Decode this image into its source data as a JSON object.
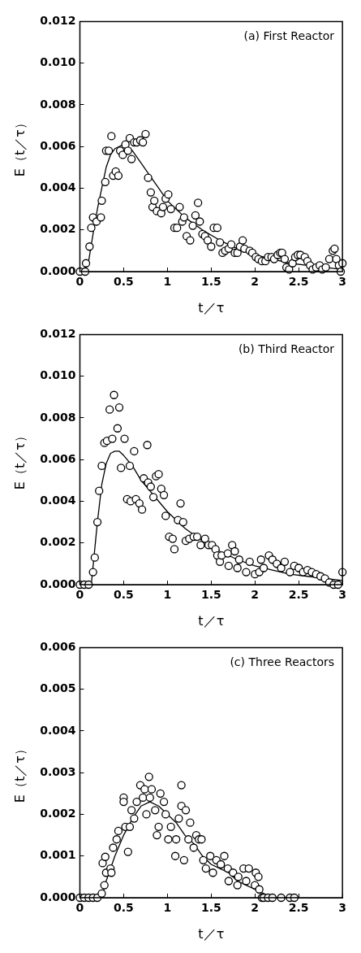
{
  "chart_data": [
    {
      "type": "scatter",
      "title": "(a) First Reactor",
      "xlabel": "t／τ",
      "ylabel": "E（t／τ）",
      "xlim": [
        0,
        3
      ],
      "ylim": [
        0,
        0.012
      ],
      "xticks": [
        0,
        0.5,
        1,
        1.5,
        2,
        2.5,
        3
      ],
      "yticks": [
        {
          "value": 0,
          "label": "0.000"
        },
        {
          "value": 0.002,
          "label": "0.002"
        },
        {
          "value": 0.004,
          "label": "0.004"
        },
        {
          "value": 0.006,
          "label": "0.006"
        },
        {
          "value": 0.008,
          "label": "0.008"
        },
        {
          "value": 0.01,
          "label": "0.010"
        },
        {
          "value": 0.012,
          "label": "0.012"
        }
      ],
      "grid": false,
      "series": [
        {
          "type": "scatter",
          "marker": "circle",
          "color": "#000000",
          "x": [
            0,
            0.06,
            0.07,
            0.11,
            0.13,
            0.15,
            0.19,
            0.24,
            0.25,
            0.29,
            0.3,
            0.33,
            0.36,
            0.38,
            0.41,
            0.44,
            0.46,
            0.49,
            0.52,
            0.55,
            0.57,
            0.59,
            0.62,
            0.65,
            0.69,
            0.72,
            0.75,
            0.78,
            0.81,
            0.83,
            0.85,
            0.88,
            0.93,
            0.95,
            0.98,
            1.01,
            1.04,
            1.08,
            1.11,
            1.14,
            1.17,
            1.19,
            1.22,
            1.26,
            1.29,
            1.32,
            1.35,
            1.37,
            1.4,
            1.43,
            1.46,
            1.5,
            1.53,
            1.57,
            1.6,
            1.63,
            1.66,
            1.7,
            1.73,
            1.77,
            1.8,
            1.83,
            1.86,
            1.88,
            1.94,
            1.97,
            2.01,
            2.04,
            2.08,
            2.12,
            2.15,
            2.19,
            2.22,
            2.26,
            2.29,
            2.31,
            2.34,
            2.36,
            2.39,
            2.43,
            2.46,
            2.49,
            2.52,
            2.57,
            2.6,
            2.63,
            2.66,
            2.7,
            2.74,
            2.77,
            2.81,
            2.85,
            2.89,
            2.91,
            2.93,
            2.96,
            2.98,
            3
          ],
          "values": [
            0,
            0,
            0.0004,
            0.0012,
            0.0021,
            0.0026,
            0.0024,
            0.0026,
            0.0034,
            0.0043,
            0.0058,
            0.0058,
            0.0065,
            0.0046,
            0.0048,
            0.0046,
            0.0058,
            0.0056,
            0.0061,
            0.0058,
            0.0064,
            0.0054,
            0.0062,
            0.0062,
            0.0063,
            0.0062,
            0.0066,
            0.0045,
            0.0038,
            0.0031,
            0.0034,
            0.0029,
            0.0028,
            0.0031,
            0.0035,
            0.0037,
            0.003,
            0.0021,
            0.0021,
            0.0031,
            0.0024,
            0.0026,
            0.0017,
            0.0015,
            0.0022,
            0.0027,
            0.0033,
            0.0024,
            0.0018,
            0.0017,
            0.0015,
            0.0012,
            0.0021,
            0.0021,
            0.0014,
            0.0009,
            0.001,
            0.0011,
            0.0013,
            0.0009,
            0.0009,
            0.0012,
            0.0015,
            0.0011,
            0.001,
            0.0009,
            0.0007,
            0.0006,
            0.0005,
            0.0005,
            0.0007,
            0.0007,
            0.0006,
            0.0008,
            0.0009,
            0.0009,
            0.0006,
            0.0002,
            0.0001,
            0.0004,
            0.0007,
            0.0008,
            0.0008,
            0.0007,
            0.0005,
            0.0003,
            0.0001,
            0.0002,
            0.0003,
            0.0001,
            0.0002,
            0.0006,
            0.001,
            0.0011,
            0.0006,
            0.0003,
            0,
            0.0004
          ]
        },
        {
          "type": "line",
          "color": "#000000",
          "x": [
            0,
            0.05,
            0.1,
            0.15,
            0.2,
            0.25,
            0.3,
            0.35,
            0.4,
            0.5,
            0.6,
            0.7,
            0.8,
            0.9,
            1,
            1.2,
            1.4,
            1.6,
            1.8,
            2,
            2.2,
            2.4,
            2.6,
            2.8,
            3
          ],
          "values": [
            0,
            0,
            0.0005,
            0.0018,
            0.003,
            0.004,
            0.005,
            0.0056,
            0.0059,
            0.0061,
            0.0058,
            0.0052,
            0.0046,
            0.004,
            0.0034,
            0.0026,
            0.002,
            0.0015,
            0.0011,
            0.0008,
            0.0006,
            0.0004,
            0.0003,
            0.0002,
            0.0001
          ]
        }
      ]
    },
    {
      "type": "scatter",
      "title": "(b) Third Reactor",
      "xlabel": "t／τ",
      "ylabel": "E（t／τ）",
      "xlim": [
        0,
        3
      ],
      "ylim": [
        0,
        0.012
      ],
      "xticks": [
        0,
        0.5,
        1,
        1.5,
        2,
        2.5,
        3
      ],
      "yticks": [
        {
          "value": 0,
          "label": "0.000"
        },
        {
          "value": 0.002,
          "label": "0.002"
        },
        {
          "value": 0.004,
          "label": "0.004"
        },
        {
          "value": 0.006,
          "label": "0.006"
        },
        {
          "value": 0.008,
          "label": "0.008"
        },
        {
          "value": 0.01,
          "label": "0.010"
        },
        {
          "value": 0.012,
          "label": "0.012"
        }
      ],
      "grid": false,
      "series": [
        {
          "type": "scatter",
          "marker": "circle",
          "color": "#000000",
          "x": [
            0,
            0.05,
            0.1,
            0.15,
            0.17,
            0.2,
            0.22,
            0.25,
            0.28,
            0.31,
            0.34,
            0.37,
            0.39,
            0.43,
            0.45,
            0.47,
            0.51,
            0.54,
            0.57,
            0.58,
            0.62,
            0.64,
            0.68,
            0.71,
            0.73,
            0.77,
            0.78,
            0.81,
            0.84,
            0.87,
            0.9,
            0.93,
            0.96,
            0.98,
            1.02,
            1.06,
            1.08,
            1.12,
            1.15,
            1.18,
            1.21,
            1.25,
            1.3,
            1.34,
            1.38,
            1.43,
            1.47,
            1.51,
            1.55,
            1.57,
            1.6,
            1.62,
            1.69,
            1.7,
            1.74,
            1.77,
            1.8,
            1.82,
            1.9,
            1.94,
            2,
            2.05,
            2.07,
            2.1,
            2.16,
            2.2,
            2.25,
            2.3,
            2.34,
            2.4,
            2.45,
            2.5,
            2.55,
            2.6,
            2.65,
            2.7,
            2.75,
            2.8,
            2.85,
            2.9,
            2.95,
            3
          ],
          "values": [
            0,
            0,
            0,
            0.0006,
            0.0013,
            0.003,
            0.0045,
            0.0057,
            0.0068,
            0.0069,
            0.0084,
            0.007,
            0.0091,
            0.0075,
            0.0085,
            0.0056,
            0.007,
            0.0041,
            0.0057,
            0.004,
            0.0064,
            0.0041,
            0.0039,
            0.0036,
            0.0051,
            0.0067,
            0.0049,
            0.0047,
            0.0042,
            0.0052,
            0.0053,
            0.0046,
            0.0043,
            0.0033,
            0.0023,
            0.0022,
            0.0017,
            0.0031,
            0.0039,
            0.003,
            0.0021,
            0.0022,
            0.0023,
            0.0023,
            0.0019,
            0.0022,
            0.0019,
            0.0019,
            0.0017,
            0.0014,
            0.0011,
            0.0014,
            0.0015,
            0.0009,
            0.0019,
            0.0016,
            0.0008,
            0.0012,
            0.0006,
            0.0011,
            0.0005,
            0.0006,
            0.0012,
            0.0008,
            0.0014,
            0.0012,
            0.001,
            0.0008,
            0.0011,
            0.0006,
            0.0009,
            0.0008,
            0.0006,
            0.0007,
            0.0006,
            0.0005,
            0.0004,
            0.0003,
            0.0001,
            0,
            0,
            0.0006
          ]
        },
        {
          "type": "line",
          "color": "#000000",
          "x": [
            0,
            0.13,
            0.2,
            0.25,
            0.3,
            0.35,
            0.4,
            0.45,
            0.5,
            0.6,
            0.7,
            0.8,
            0.9,
            1,
            1.2,
            1.4,
            1.6,
            1.8,
            2,
            2.2,
            2.4,
            2.6,
            2.8,
            3
          ],
          "values": [
            0,
            0,
            0.003,
            0.0048,
            0.0058,
            0.0063,
            0.0064,
            0.0064,
            0.0062,
            0.0057,
            0.005,
            0.0045,
            0.004,
            0.0035,
            0.0027,
            0.0021,
            0.0016,
            0.0012,
            0.0009,
            0.0007,
            0.0005,
            0.0004,
            0.0003,
            0.0002
          ]
        }
      ]
    },
    {
      "type": "scatter",
      "title": "(c) Three Reactors",
      "xlabel": "t／τ",
      "ylabel": "E（t／τ）",
      "xlim": [
        0,
        3
      ],
      "ylim": [
        0,
        0.006
      ],
      "xticks": [
        0,
        0.5,
        1,
        1.5,
        2,
        2.5,
        3
      ],
      "yticks": [
        {
          "value": 0,
          "label": "0.000"
        },
        {
          "value": 0.001,
          "label": "0.001"
        },
        {
          "value": 0.002,
          "label": "0.002"
        },
        {
          "value": 0.003,
          "label": "0.003"
        },
        {
          "value": 0.004,
          "label": "0.004"
        },
        {
          "value": 0.005,
          "label": "0.005"
        },
        {
          "value": 0.006,
          "label": "0.006"
        }
      ],
      "grid": false,
      "series": [
        {
          "type": "scatter",
          "marker": "circle",
          "color": "#000000",
          "x": [
            0,
            0.05,
            0.1,
            0.15,
            0.2,
            0.25,
            0.26,
            0.28,
            0.29,
            0.3,
            0.35,
            0.36,
            0.38,
            0.42,
            0.44,
            0.5,
            0.5,
            0.52,
            0.55,
            0.57,
            0.59,
            0.62,
            0.65,
            0.69,
            0.72,
            0.74,
            0.76,
            0.79,
            0.8,
            0.82,
            0.86,
            0.88,
            0.9,
            0.92,
            0.96,
            0.98,
            1.01,
            1.04,
            1.09,
            1.1,
            1.13,
            1.16,
            1.16,
            1.19,
            1.21,
            1.24,
            1.26,
            1.3,
            1.33,
            1.36,
            1.39,
            1.41,
            1.44,
            1.49,
            1.52,
            1.56,
            1.61,
            1.65,
            1.69,
            1.7,
            1.75,
            1.8,
            1.81,
            1.87,
            1.9,
            1.93,
            2,
            2.01,
            2.04,
            2.05,
            2.08,
            2.1,
            2.15,
            2.2,
            2.3,
            2.4,
            2.45
          ],
          "values": [
            0,
            0,
            0,
            0,
            0,
            0.0001,
            0.00083,
            0.0003,
            0.00098,
            0.0006,
            0.0007,
            0.0006,
            0.0012,
            0.0014,
            0.0016,
            0.0024,
            0.0023,
            0.0017,
            0.0011,
            0.0017,
            0.0021,
            0.0019,
            0.0023,
            0.0027,
            0.0024,
            0.0026,
            0.002,
            0.0029,
            0.0024,
            0.0026,
            0.0021,
            0.0015,
            0.0017,
            0.0025,
            0.0023,
            0.002,
            0.0014,
            0.0017,
            0.001,
            0.0014,
            0.0019,
            0.0027,
            0.0022,
            0.0009,
            0.0021,
            0.0014,
            0.0018,
            0.0012,
            0.0015,
            0.0014,
            0.0014,
            0.0009,
            0.0007,
            0.001,
            0.0006,
            0.0009,
            0.0008,
            0.001,
            0.0007,
            0.0004,
            0.0006,
            0.0003,
            0.0005,
            0.0007,
            0.0004,
            0.0007,
            0.0003,
            0.0006,
            0.0005,
            0.0002,
            0,
            0,
            0,
            0,
            0,
            0,
            0
          ]
        },
        {
          "type": "line",
          "color": "#000000",
          "x": [
            0,
            0.25,
            0.3,
            0.4,
            0.5,
            0.6,
            0.7,
            0.8,
            0.9,
            1,
            1.1,
            1.2,
            1.3,
            1.4,
            1.5,
            1.6,
            1.7,
            1.8,
            1.9,
            2,
            2.1,
            2.2,
            2.5
          ],
          "values": [
            0,
            0,
            0.0004,
            0.001,
            0.0015,
            0.0019,
            0.0022,
            0.0023,
            0.0022,
            0.002,
            0.0018,
            0.0015,
            0.0013,
            0.001,
            0.0008,
            0.0007,
            0.0006,
            0.0004,
            0.0003,
            0.0002,
            0.0001,
            0,
            0
          ]
        }
      ]
    }
  ]
}
